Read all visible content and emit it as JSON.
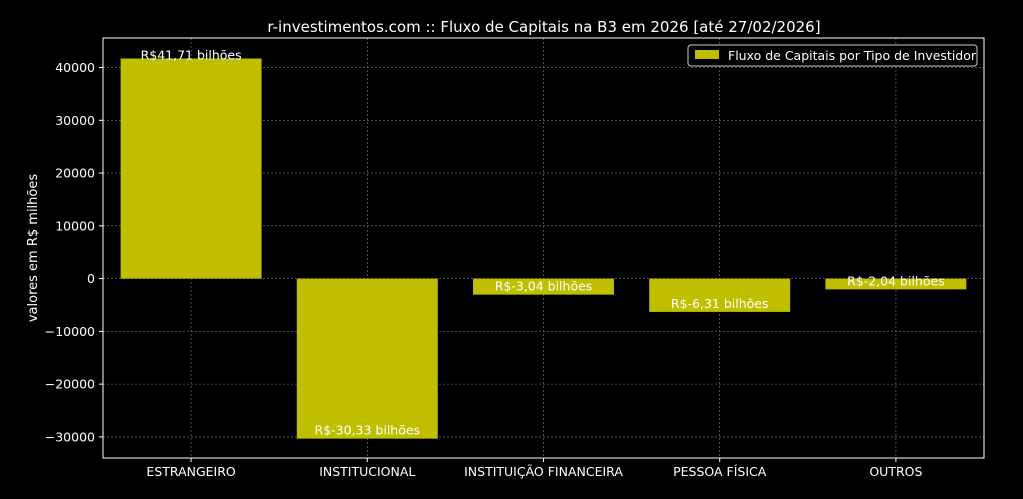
{
  "chart_data": {
    "type": "bar",
    "title": "r-investimentos.com :: Fluxo de Capitais na B3 em 2026  [até 27/02/2026]",
    "xlabel": "",
    "ylabel": "valores em R$ milhões",
    "categories": [
      "ESTRANGEIRO",
      "INSTITUCIONAL",
      "INSTITUIÇÃO FINANCEIRA",
      "PESSOA FÍSICA",
      "OUTROS"
    ],
    "series": [
      {
        "name": "Fluxo de Capitais por Tipo de Investidor",
        "values": [
          41710,
          -30330,
          -3040,
          -6310,
          -2040
        ],
        "labels": [
          "R$41,71 bilhões",
          "R$-30,33 bilhões",
          "R$-3,04 bilhões",
          "R$-6,31 bilhões",
          "R$-2,04 bilhões"
        ]
      }
    ],
    "ylim": [
      -34000,
      45600
    ],
    "yticks": [
      -30000,
      -20000,
      -10000,
      0,
      10000,
      20000,
      30000,
      40000
    ],
    "ytick_labels": [
      "−30000",
      "−20000",
      "−10000",
      "0",
      "10000",
      "20000",
      "30000",
      "40000"
    ],
    "grid": true,
    "legend_position": "top-right",
    "colors": {
      "background": "#000000",
      "bar": "#bfbf00",
      "axes": "#ffffff",
      "grid": "#808080",
      "text": "#ffffff"
    }
  }
}
